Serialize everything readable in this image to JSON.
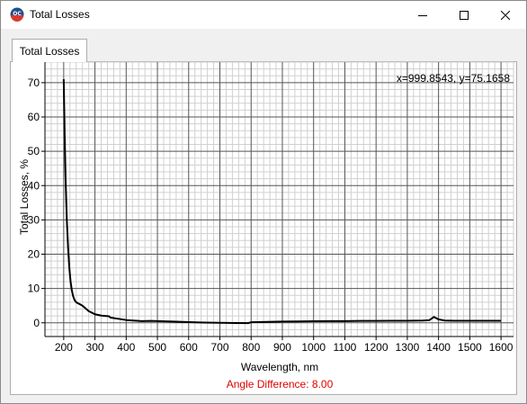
{
  "window": {
    "title": "Total Losses",
    "app_icon": "oc-app-icon",
    "controls": [
      "minimize-icon",
      "maximize-icon",
      "close-icon"
    ]
  },
  "tabs": [
    {
      "label": "Total Losses",
      "active": true
    }
  ],
  "cursor_readout": "x=999.8543, y=75.1658",
  "angle_difference_text": "Angle Difference: 8.00",
  "colors": {
    "curve": "#000000",
    "angle_text": "#e00000",
    "major_grid": "#555555",
    "minor_grid": "#d0d0d0"
  },
  "chart_data": {
    "type": "line",
    "xlabel": "Wavelength, nm",
    "ylabel": "Total Losses, %",
    "xlim": [
      140,
      1640
    ],
    "ylim": [
      -4,
      76
    ],
    "xticks": [
      200,
      300,
      400,
      500,
      600,
      700,
      800,
      900,
      1000,
      1100,
      1200,
      1300,
      1400,
      1500,
      1600
    ],
    "yticks": [
      0,
      10,
      20,
      30,
      40,
      50,
      60,
      70
    ],
    "grid": true,
    "series": [
      {
        "x": [
          200,
          203,
          206,
          210,
          214,
          218,
          222,
          226,
          230,
          235,
          240,
          245,
          250,
          260,
          270,
          280,
          300,
          320,
          345,
          350,
          380,
          400,
          450,
          480,
          500,
          550,
          600,
          650,
          700,
          750,
          790,
          800,
          850,
          900,
          950,
          1000,
          1050,
          1100,
          1150,
          1200,
          1250,
          1300,
          1350,
          1370,
          1385,
          1400,
          1420,
          1450,
          1500,
          1550,
          1600
        ],
        "y": [
          71,
          55,
          42,
          30,
          22,
          16,
          12,
          9.5,
          7.8,
          6.6,
          6.0,
          5.7,
          5.5,
          5.0,
          4.2,
          3.4,
          2.5,
          2.1,
          1.9,
          1.5,
          1.1,
          0.8,
          0.5,
          0.55,
          0.5,
          0.35,
          0.2,
          0.05,
          0.0,
          -0.05,
          -0.1,
          0.15,
          0.25,
          0.35,
          0.4,
          0.45,
          0.5,
          0.5,
          0.55,
          0.55,
          0.6,
          0.6,
          0.65,
          0.75,
          1.7,
          1.0,
          0.65,
          0.6,
          0.6,
          0.6,
          0.6
        ]
      }
    ]
  }
}
